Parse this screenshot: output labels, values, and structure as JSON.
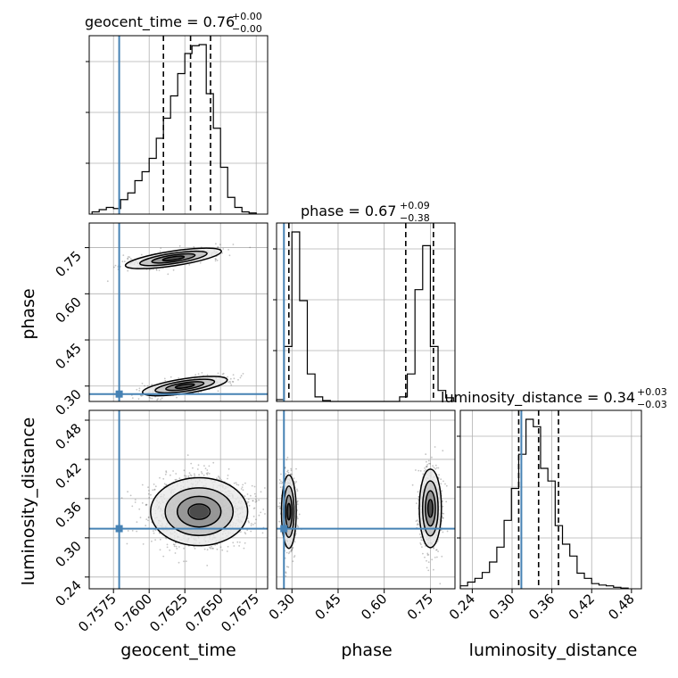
{
  "chart_data": [
    {
      "panel": "1d-geocent_time",
      "type": "bar",
      "title": {
        "param": "geocent_time",
        "median": "0.76",
        "plus": "+0.00",
        "minus": "−0.00"
      },
      "x": [
        0.75625,
        0.75675,
        0.75725,
        0.75775,
        0.75825,
        0.75875,
        0.75925,
        0.75975,
        0.76025,
        0.76075,
        0.76125,
        0.76175,
        0.76225,
        0.76275,
        0.76325,
        0.76375,
        0.76425,
        0.76475,
        0.76525,
        0.76575,
        0.76625,
        0.76675,
        0.76725
      ],
      "values": [
        2,
        4,
        6,
        5,
        13,
        19,
        30,
        38,
        50,
        68,
        86,
        106,
        126,
        144,
        151,
        152,
        108,
        77,
        42,
        15,
        6,
        2,
        1
      ],
      "xlim": [
        0.7558,
        0.7683
      ],
      "truth": 0.7579,
      "quantiles": [
        0.761,
        0.7629,
        0.7643
      ]
    },
    {
      "panel": "1d-phase",
      "type": "bar",
      "title": {
        "param": "phase",
        "median": "0.67",
        "plus": "+0.09",
        "minus": "−0.38"
      },
      "x": [
        0.2625,
        0.2875,
        0.3125,
        0.3375,
        0.3625,
        0.3875,
        0.4125,
        0.4375,
        0.4625,
        0.4875,
        0.5125,
        0.5375,
        0.5625,
        0.5875,
        0.6125,
        0.6375,
        0.6625,
        0.6875,
        0.7125,
        0.7375,
        0.7625,
        0.7875,
        0.8125
      ],
      "values": [
        2,
        60,
        185,
        110,
        30,
        5,
        1,
        0,
        0,
        0,
        0,
        0,
        0,
        0,
        0,
        0,
        5,
        30,
        122,
        170,
        60,
        12,
        4
      ],
      "xlim": [
        0.25,
        0.83
      ],
      "truth": 0.274,
      "quantiles": [
        0.29,
        0.67,
        0.76
      ]
    },
    {
      "panel": "1d-luminosity_distance",
      "type": "bar",
      "title": {
        "param": "luminosity_distance",
        "median": "0.34",
        "plus": "+0.03",
        "minus": "−0.03"
      },
      "x": [
        0.2275,
        0.2385,
        0.2495,
        0.2605,
        0.2715,
        0.2825,
        0.2935,
        0.3045,
        0.3155,
        0.3265,
        0.3375,
        0.3485,
        0.3595,
        0.3705,
        0.3815,
        0.3925,
        0.4035,
        0.4145,
        0.4255,
        0.4365,
        0.4475,
        0.4585,
        0.4695
      ],
      "values": [
        4,
        9,
        14,
        22,
        36,
        56,
        92,
        135,
        181,
        228,
        218,
        162,
        145,
        85,
        60,
        44,
        21,
        14,
        7,
        5,
        4,
        2,
        1
      ],
      "xlim": [
        0.222,
        0.495
      ],
      "truth": 0.314,
      "quantiles": [
        0.31,
        0.34,
        0.37
      ]
    },
    {
      "panel": "2d-geocent_time-phase",
      "type": "scatter",
      "xlabel": "",
      "ylabel": "phase",
      "xlim": [
        0.7558,
        0.7683
      ],
      "ylim": [
        0.25,
        0.83
      ],
      "truth": [
        0.7579,
        0.274
      ]
    },
    {
      "panel": "2d-geocent_time-luminosity_distance",
      "type": "scatter",
      "xlabel": "geocent_time",
      "ylabel": "luminosity_distance",
      "xlim": [
        0.7558,
        0.7683
      ],
      "ylim": [
        0.222,
        0.495
      ],
      "truth": [
        0.7579,
        0.314
      ]
    },
    {
      "panel": "2d-phase-luminosity_distance",
      "type": "scatter",
      "xlabel": "phase",
      "ylabel": "",
      "xlim": [
        0.25,
        0.83
      ],
      "ylim": [
        0.222,
        0.495
      ],
      "truth": [
        0.274,
        0.314
      ]
    }
  ],
  "axes": {
    "geocent_time": {
      "label": "geocent_time",
      "ticks": [
        "0.7575",
        "0.7600",
        "0.7625",
        "0.7650",
        "0.7675"
      ],
      "tickvals": [
        0.7575,
        0.76,
        0.7625,
        0.765,
        0.7675
      ]
    },
    "phase": {
      "label": "phase",
      "ticks": [
        "0.30",
        "0.45",
        "0.60",
        "0.75"
      ],
      "tickvals": [
        0.3,
        0.45,
        0.6,
        0.75
      ]
    },
    "luminosity_distance": {
      "label": "luminosity_distance",
      "ticks": [
        "0.24",
        "0.30",
        "0.36",
        "0.42",
        "0.48"
      ],
      "tickvals": [
        0.24,
        0.3,
        0.36,
        0.42,
        0.48
      ]
    }
  },
  "colors": {
    "truth": "#4682b4",
    "hist": "#000000",
    "grid": "#b0b0b0",
    "points": "#555555"
  }
}
